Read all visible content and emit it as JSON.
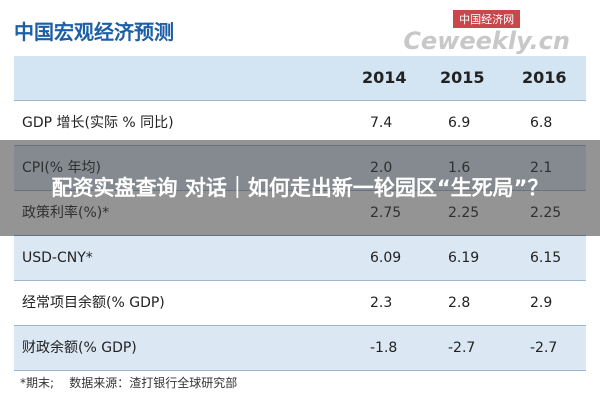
{
  "header": {
    "title": "中国宏观经济预测",
    "watermark_cn": "中国经济网",
    "watermark_en": "Ceweekly.cn"
  },
  "table": {
    "columns": [
      "2014",
      "2015",
      "2016"
    ],
    "rows": [
      [
        "GDP 增长(实际 % 同比)",
        "7.4",
        "6.9",
        "6.8"
      ],
      [
        "CPI(% 年均)",
        "2.0",
        "1.6",
        "2.1"
      ],
      [
        "政策利率(%)*",
        "2.75",
        "2.25",
        "2.25"
      ],
      [
        "USD-CNY*",
        "6.09",
        "6.19",
        "6.15"
      ],
      [
        "经常项目余额(% GDP)",
        "2.3",
        "2.8",
        "2.9"
      ],
      [
        "财政余额(% GDP)",
        "-1.8",
        "-2.7",
        "-2.7"
      ]
    ]
  },
  "footnote": "*期末;    数据来源：渣打银行全球研究部",
  "overlay": {
    "headline": "配资实盘查询 对话｜如何走出新一轮园区“生死局”？"
  }
}
